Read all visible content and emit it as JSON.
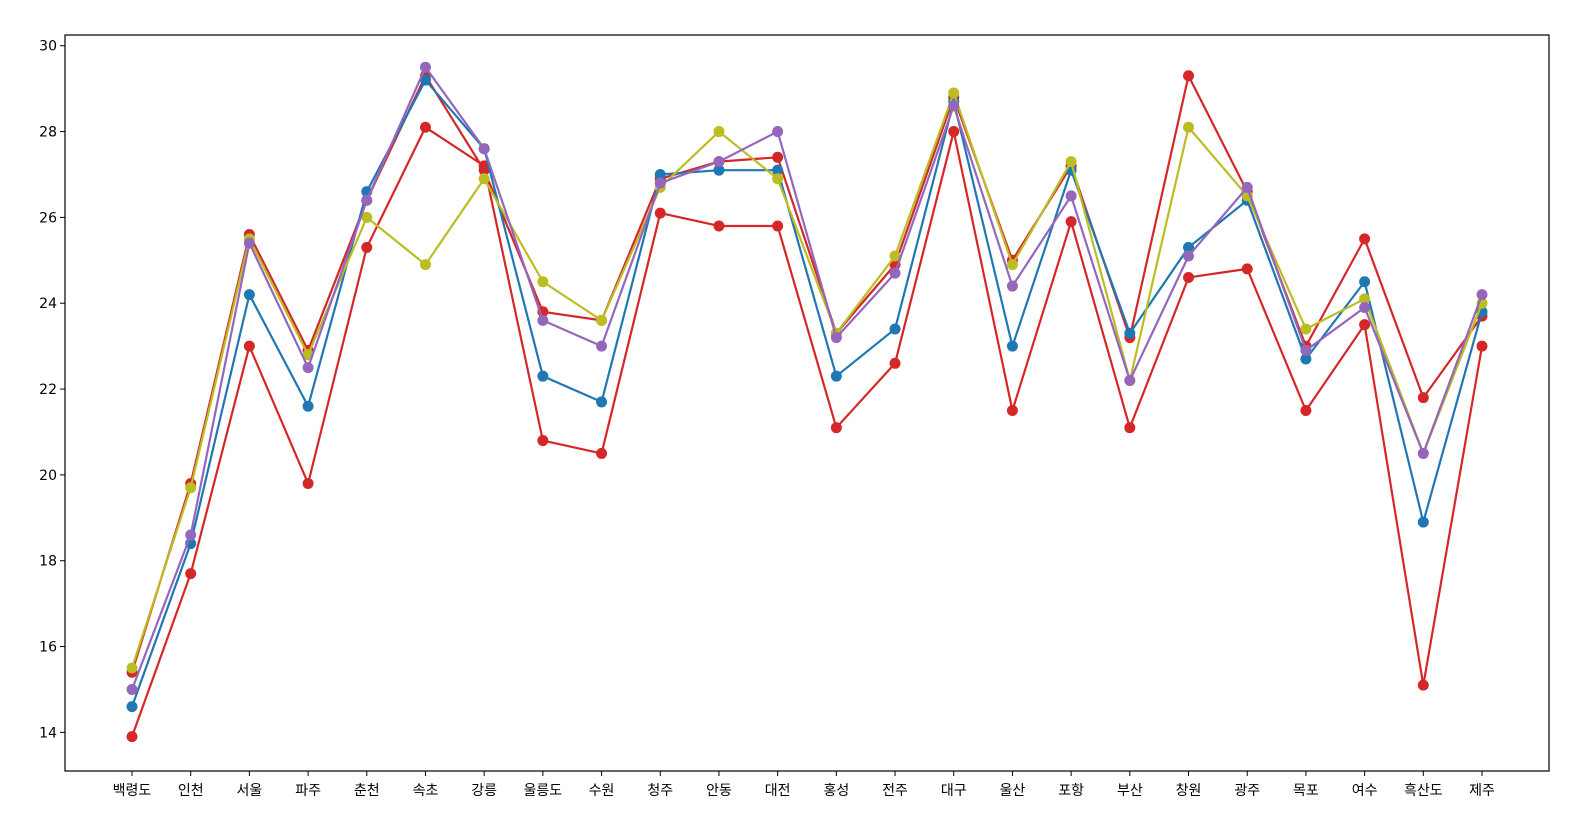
{
  "chart_data": {
    "type": "line",
    "title": "",
    "xlabel": "",
    "ylabel": "",
    "ylim": [
      13.1,
      30.25
    ],
    "yticks": [
      14,
      16,
      18,
      20,
      22,
      24,
      26,
      28,
      30
    ],
    "grid": false,
    "legend": "none",
    "categories": [
      "백령도",
      "인천",
      "서울",
      "파주",
      "춘천",
      "속초",
      "강릉",
      "울릉도",
      "수원",
      "청주",
      "안동",
      "대전",
      "홍성",
      "전주",
      "대구",
      "울산",
      "포항",
      "부산",
      "창원",
      "광주",
      "목포",
      "여수",
      "흑산도",
      "제주"
    ],
    "series": [
      {
        "color": "#d62728",
        "values": [
          15.4,
          19.8,
          25.6,
          22.9,
          26.4,
          29.3,
          27.1,
          23.8,
          23.6,
          26.9,
          27.3,
          27.4,
          23.3,
          24.9,
          28.8,
          25.0,
          27.2,
          23.2,
          29.3,
          26.6,
          23.0,
          25.5,
          21.8,
          23.7
        ]
      },
      {
        "color": "#d62728",
        "values": [
          13.9,
          17.7,
          23.0,
          19.8,
          25.3,
          28.1,
          27.2,
          20.8,
          20.5,
          26.1,
          25.8,
          25.8,
          21.1,
          22.6,
          28.0,
          21.5,
          25.9,
          21.1,
          24.6,
          24.8,
          21.5,
          23.5,
          15.1,
          23.0
        ]
      },
      {
        "color": "#1f77b4",
        "values": [
          14.6,
          18.4,
          24.2,
          21.6,
          26.6,
          29.2,
          27.6,
          22.3,
          21.7,
          27.0,
          27.1,
          27.1,
          22.3,
          23.4,
          28.7,
          23.0,
          27.1,
          23.3,
          25.3,
          26.4,
          22.7,
          24.5,
          18.9,
          23.8
        ]
      },
      {
        "color": "#bcbd22",
        "values": [
          15.5,
          19.7,
          25.5,
          22.8,
          26.0,
          24.9,
          26.9,
          24.5,
          23.6,
          26.7,
          28.0,
          26.9,
          23.3,
          25.1,
          28.9,
          24.9,
          27.3,
          22.2,
          28.1,
          26.5,
          23.4,
          24.1,
          20.5,
          24.0
        ]
      },
      {
        "color": "#9467bd",
        "values": [
          15.0,
          18.6,
          25.4,
          22.5,
          26.4,
          29.5,
          27.6,
          23.6,
          23.0,
          26.8,
          27.3,
          28.0,
          23.2,
          24.7,
          28.6,
          24.4,
          26.5,
          22.2,
          25.1,
          26.7,
          22.9,
          23.9,
          20.5,
          24.2
        ]
      }
    ]
  }
}
